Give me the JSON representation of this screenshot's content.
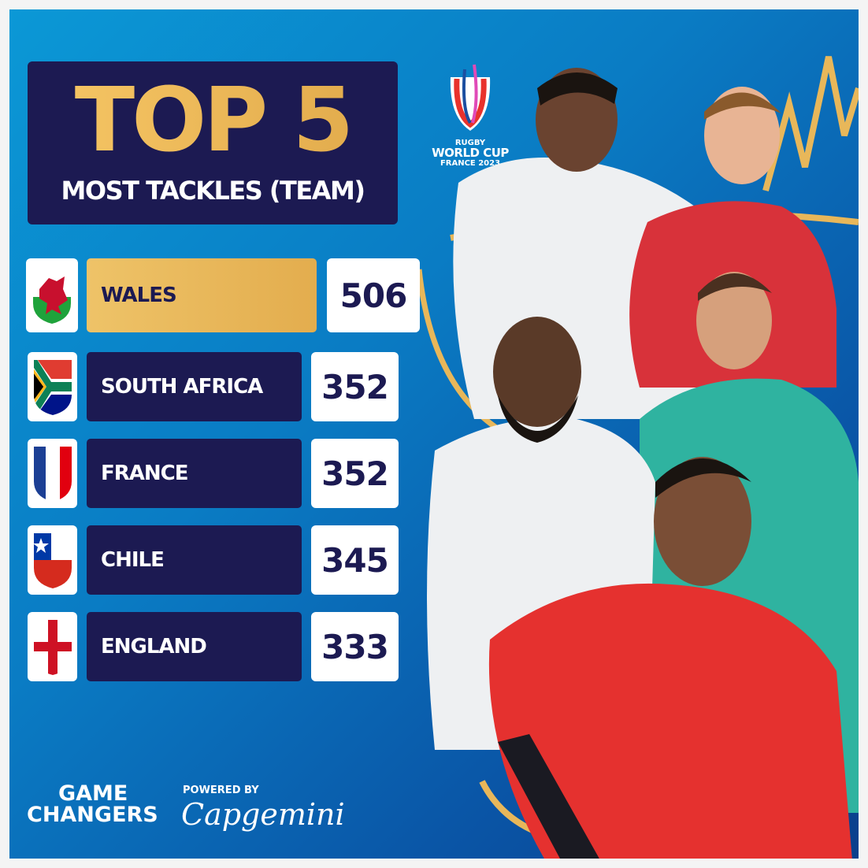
{
  "header": {
    "title": "TOP 5",
    "subtitle": "MOST TACKLES (TEAM)"
  },
  "event_logo": {
    "line1": "RUGBY",
    "line2": "WORLD CUP",
    "line3": "FRANCE 2023"
  },
  "rankings": [
    {
      "rank": 1,
      "team": "WALES",
      "tackles": "506",
      "flag": "wales-flag-icon",
      "highlight": true
    },
    {
      "rank": 2,
      "team": "SOUTH AFRICA",
      "tackles": "352",
      "flag": "south-africa-flag-icon",
      "highlight": false
    },
    {
      "rank": 3,
      "team": "FRANCE",
      "tackles": "352",
      "flag": "france-flag-icon",
      "highlight": false
    },
    {
      "rank": 4,
      "team": "CHILE",
      "tackles": "345",
      "flag": "chile-flag-icon",
      "highlight": false
    },
    {
      "rank": 5,
      "team": "ENGLAND",
      "tackles": "333",
      "flag": "england-flag-icon",
      "highlight": false
    }
  ],
  "footer": {
    "line1": "GAME",
    "line2": "CHANGERS",
    "powered_by": "POWERED BY",
    "sponsor": "Capgemini"
  },
  "colors": {
    "navy": "#1c1a52",
    "gold": "#e8b75a",
    "background": "#0a7cc4"
  }
}
